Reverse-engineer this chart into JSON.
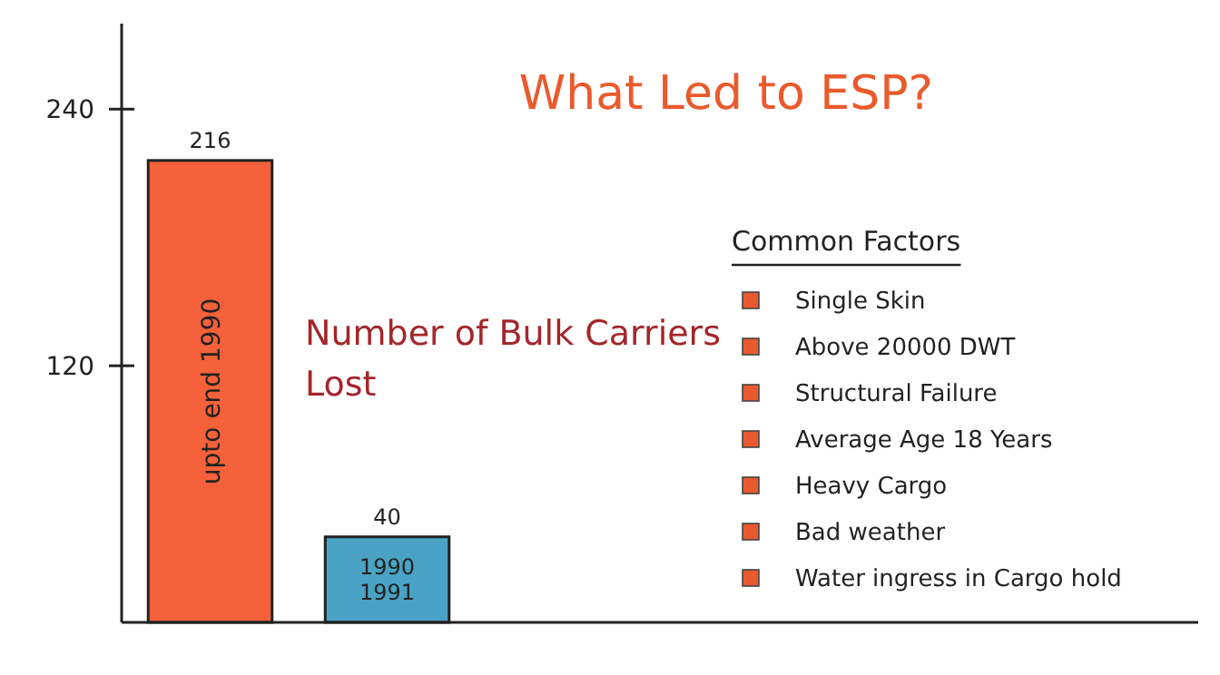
{
  "chart_data": {
    "type": "bar",
    "title": "What Led to ESP?",
    "categories": [
      "upto end 1990",
      "1990 1991"
    ],
    "values": [
      216,
      40
    ],
    "colors": [
      "#f4613a",
      "#4aa3c4"
    ],
    "ylim": [
      0,
      280
    ],
    "yticks": [
      120,
      240
    ],
    "data_labels": true,
    "annotations": [
      "Number of Bulk Carriers Lost",
      "Common Factors",
      "Single Skin",
      "Above 20000 DWT",
      "Structural Failure",
      "Average Age 18 Years",
      "Heavy Cargo",
      "Bad weather",
      "Water ingress in Cargo hold"
    ]
  }
}
